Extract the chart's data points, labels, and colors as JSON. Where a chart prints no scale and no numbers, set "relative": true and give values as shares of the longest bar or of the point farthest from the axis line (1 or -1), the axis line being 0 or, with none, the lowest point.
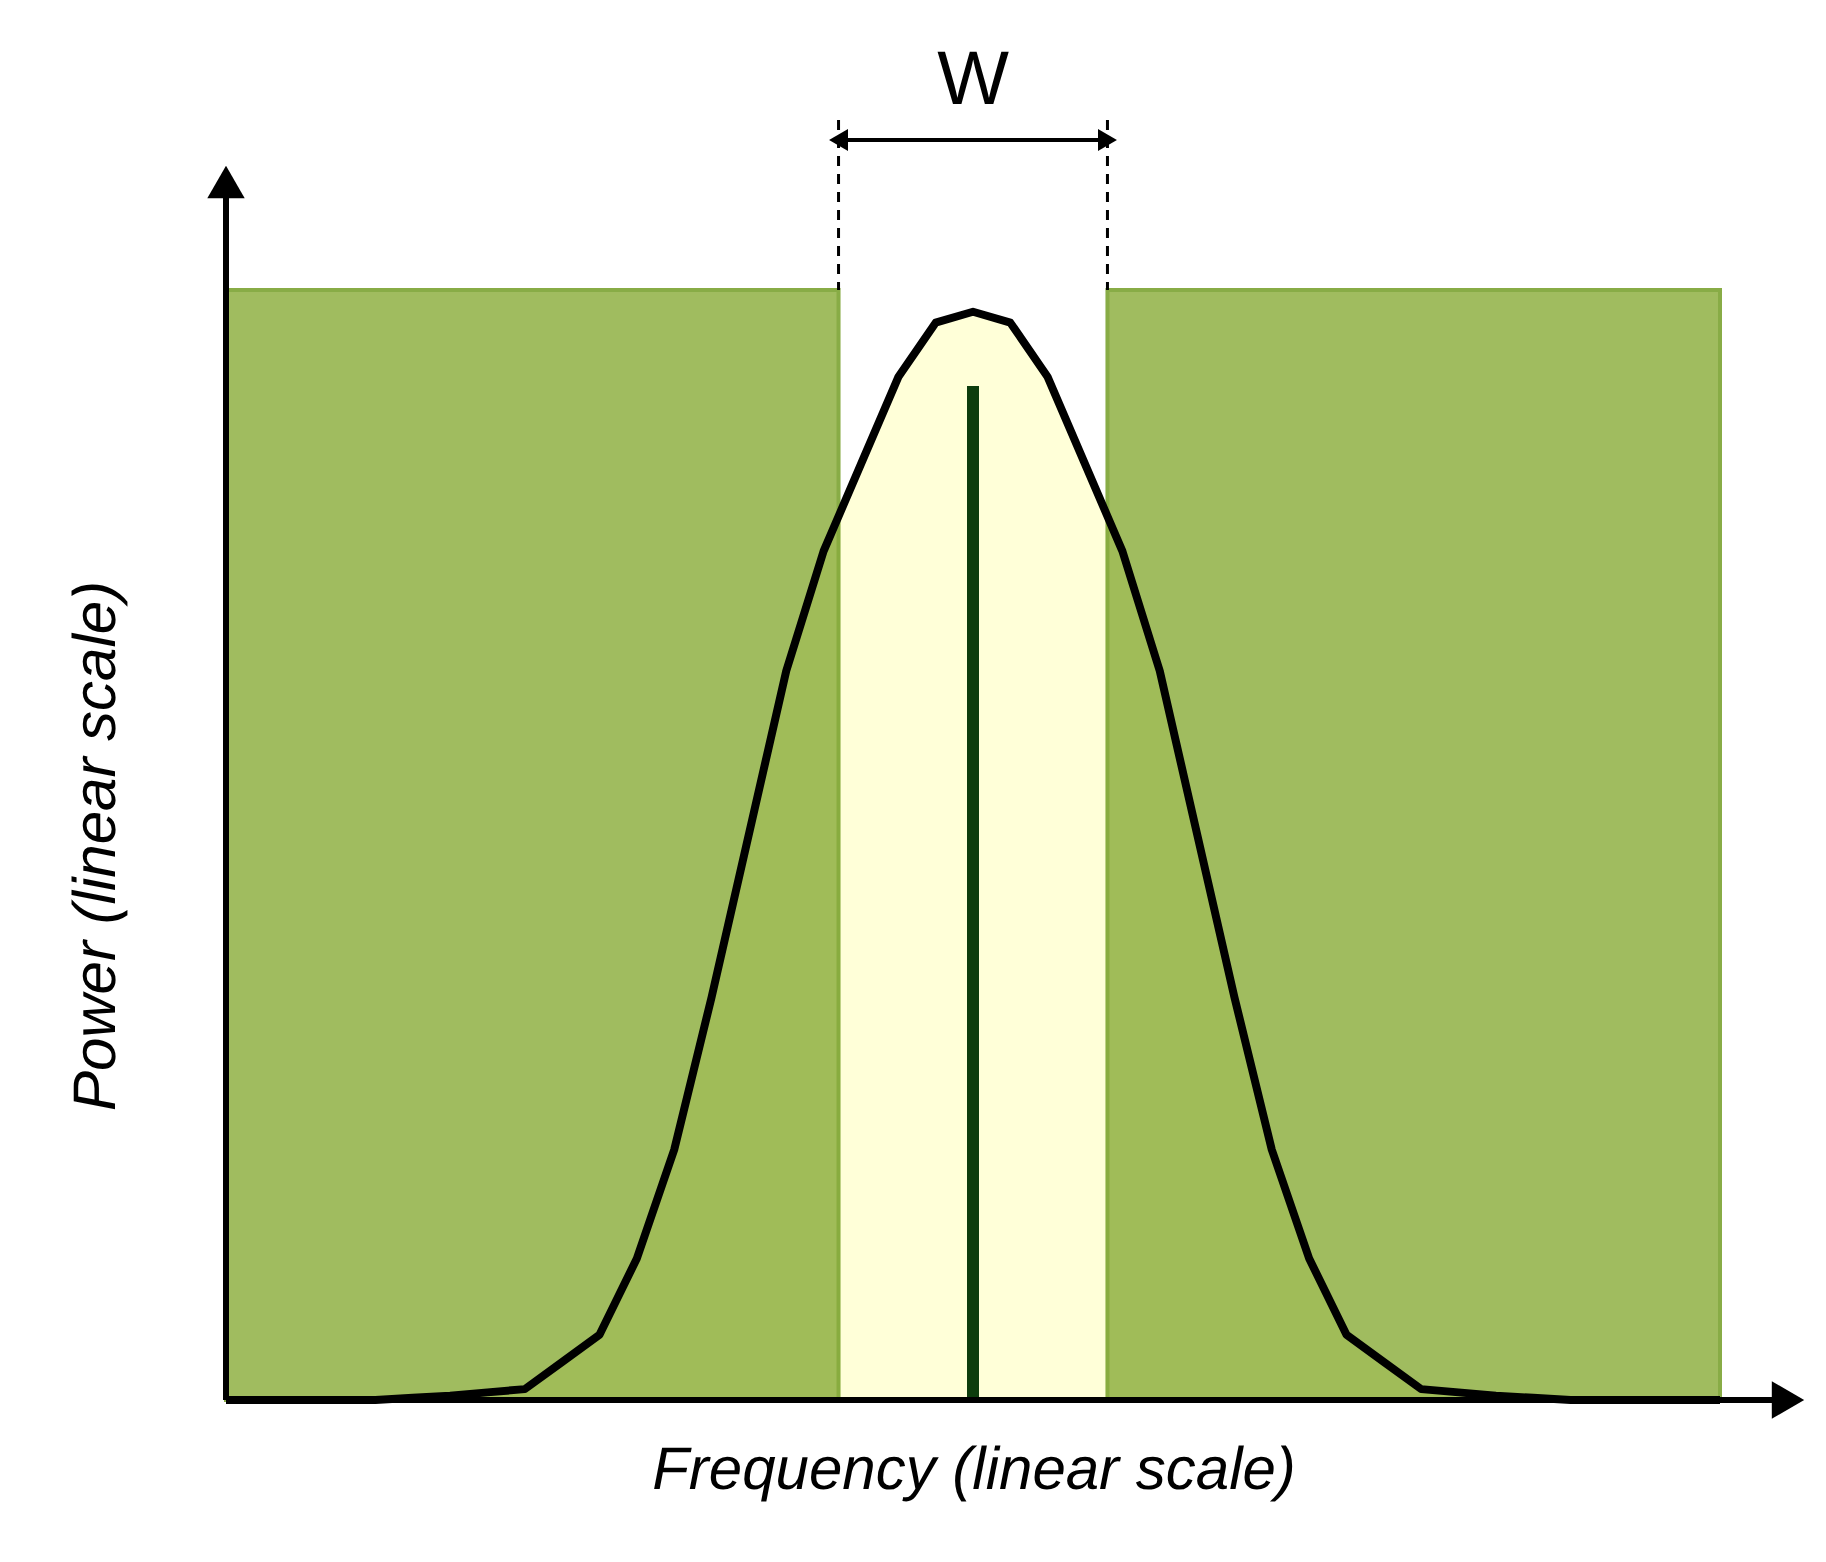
{
  "chart_data": {
    "type": "line",
    "relative": true,
    "xlabel": "Frequency (linear scale)",
    "ylabel": "Power (linear scale)",
    "grid": false,
    "categories": [
      null,
      null,
      null,
      null,
      null,
      null,
      null,
      null,
      null,
      null,
      null,
      null,
      null,
      null,
      null,
      null,
      null,
      null,
      null,
      null,
      null,
      null,
      null,
      null,
      null,
      null,
      null,
      null,
      null,
      null,
      null,
      null,
      null,
      null,
      null,
      null,
      null,
      null,
      null,
      null,
      null
    ],
    "series": [
      {
        "color": "#000000",
        "values": [
          0,
          0,
          0,
          0,
          0,
          0.002,
          0.004,
          0.007,
          0.01,
          0.035,
          0.06,
          0.13,
          0.23,
          0.37,
          0.52,
          0.67,
          0.78,
          0.86,
          0.94,
          0.99,
          1,
          0.99,
          0.94,
          0.86,
          0.78,
          0.67,
          0.52,
          0.37,
          0.23,
          0.13,
          0.06,
          0.035,
          0.01,
          0.007,
          0.004,
          0.002,
          0,
          0,
          0,
          0,
          0
        ]
      }
    ],
    "annotations": [
      "W"
    ]
  }
}
